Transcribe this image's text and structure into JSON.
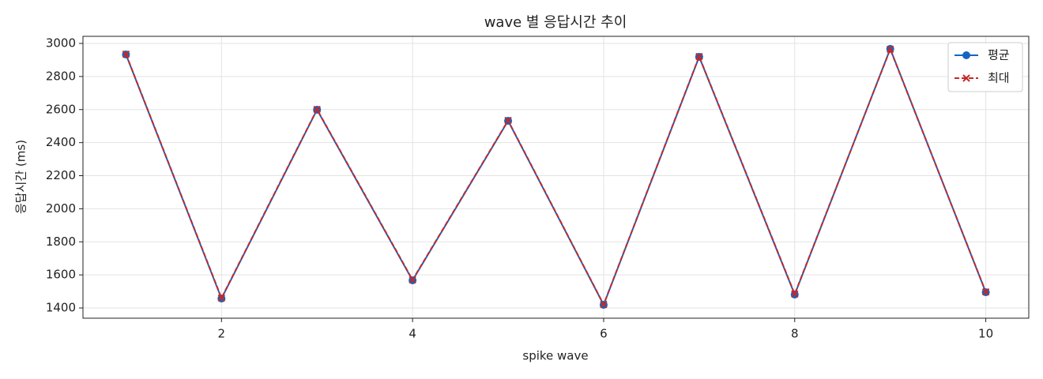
{
  "chart_data": {
    "type": "line",
    "title": "wave 별 응답시간 추이",
    "x_label": "spike wave",
    "y_label": "응답시간 (ms)",
    "x": [
      1,
      2,
      3,
      4,
      5,
      6,
      7,
      8,
      9,
      10
    ],
    "series": [
      {
        "name": "평균",
        "color": "#1565c0",
        "marker": "circle",
        "linestyle": "solid",
        "values": [
          2933,
          1457,
          2599,
          1567,
          2532,
          1419,
          2919,
          1481,
          2967,
          1495
        ]
      },
      {
        "name": "최대",
        "color": "#c62828",
        "marker": "x",
        "linestyle": "dashed",
        "values": [
          2935,
          1460,
          2601,
          1570,
          2534,
          1421,
          2921,
          1484,
          2965,
          1497
        ]
      }
    ],
    "xlim": [
      0.55,
      10.45
    ],
    "xticks": [
      2,
      4,
      6,
      8,
      10
    ],
    "ylim": [
      1338,
      3043
    ],
    "yticks": [
      1400,
      1600,
      1800,
      2000,
      2200,
      2400,
      2600,
      2800,
      3000
    ],
    "grid": true,
    "legend": "upper right"
  }
}
